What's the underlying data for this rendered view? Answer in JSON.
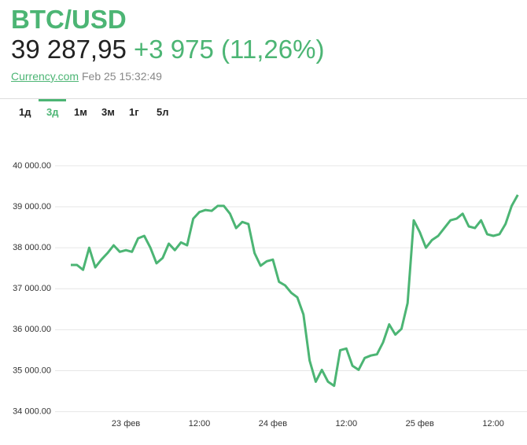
{
  "header": {
    "symbol": "BTC/USD",
    "price": "39 287,95",
    "change": "+3 975 (11,26%)",
    "source": "Currency.com",
    "timestamp": "Feb 25 15:32:49"
  },
  "tabs": [
    "1д",
    "3д",
    "1м",
    "3м",
    "1г",
    "5л"
  ],
  "active_tab": "3д",
  "chart_data": {
    "type": "line",
    "color": "#4cb574",
    "grid": true,
    "categories": [
      null,
      null,
      null,
      null,
      null,
      null,
      null,
      null,
      null,
      "23 фев",
      null,
      null,
      null,
      null,
      null,
      null,
      null,
      null,
      null,
      null,
      null,
      "12:00",
      null,
      null,
      null,
      null,
      null,
      null,
      null,
      null,
      null,
      null,
      null,
      "24 фев",
      null,
      null,
      null,
      null,
      null,
      null,
      null,
      null,
      null,
      null,
      null,
      "12:00",
      null,
      null,
      null,
      null,
      null,
      null,
      null,
      null,
      null,
      null,
      null,
      "25 фев",
      null,
      null,
      null,
      null,
      null,
      null,
      null,
      null,
      null,
      null,
      null,
      "12:00",
      null,
      null,
      null,
      null
    ],
    "values": [
      37580,
      37580,
      37460,
      38000,
      37520,
      37710,
      37870,
      38060,
      37900,
      37940,
      37900,
      38230,
      38290,
      38000,
      37620,
      37750,
      38100,
      37940,
      38130,
      38060,
      38710,
      38870,
      38920,
      38900,
      39020,
      39020,
      38830,
      38480,
      38630,
      38580,
      37870,
      37560,
      37670,
      37710,
      37170,
      37080,
      36900,
      36790,
      36370,
      35250,
      34730,
      35020,
      34730,
      34630,
      35500,
      35540,
      35120,
      35020,
      35310,
      35370,
      35400,
      35690,
      36130,
      35880,
      36020,
      36650,
      38670,
      38380,
      38000,
      38190,
      38290,
      38480,
      38670,
      38710,
      38830,
      38520,
      38480,
      38670,
      38330,
      38290,
      38330,
      38580,
      39020,
      39290
    ],
    "ylim": [
      33800,
      40400
    ],
    "yticks": [
      {
        "value": 34000,
        "label": "34 000.00"
      },
      {
        "value": 35000,
        "label": "35 000.00"
      },
      {
        "value": 36000,
        "label": "36 000.00"
      },
      {
        "value": 37000,
        "label": "37 000.00"
      },
      {
        "value": 38000,
        "label": "38 000.00"
      },
      {
        "value": 39000,
        "label": "39 000.00"
      },
      {
        "value": 40000,
        "label": "40 000.00"
      }
    ]
  }
}
